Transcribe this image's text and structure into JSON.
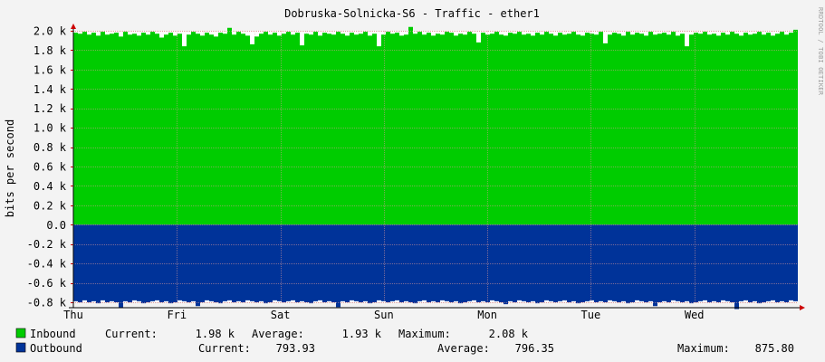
{
  "watermark": "RRDTOOL / TOBI OETIKER",
  "colors": {
    "inbound": "#00cc00",
    "outbound": "#003399",
    "background": "#f3f3f3",
    "canvas": "#ffffff",
    "grid_minor": "#eadada",
    "grid_major": "#dd9999",
    "axis_arrow": "#cc0000"
  },
  "chart_data": {
    "type": "area",
    "title": "Dobruska-Solnicka-S6 - Traffic - ether1",
    "ylabel": "bits per second",
    "xlabel": "",
    "ylim": [
      -0.8,
      2.0
    ],
    "yunit": "k",
    "y_ticks": [
      2.0,
      1.8,
      1.6,
      1.4,
      1.2,
      1.0,
      0.8,
      0.6,
      0.4,
      0.2,
      0.0,
      -0.2,
      -0.4,
      -0.6,
      -0.8
    ],
    "y_tick_labels": [
      "2.0 k",
      "1.8 k",
      "1.6 k",
      "1.4 k",
      "1.2 k",
      "1.0 k",
      "0.8 k",
      "0.6 k",
      "0.4 k",
      "0.2 k",
      "0.0",
      "-0.2 k",
      "-0.4 k",
      "-0.6 k",
      "-0.8 k"
    ],
    "x_tick_labels": [
      "Thu",
      "Fri",
      "Sat",
      "Sun",
      "Mon",
      "Tue",
      "Wed"
    ],
    "x_range_days": [
      0,
      7
    ],
    "grid": true,
    "legend_position": "bottom-left",
    "series": [
      {
        "name": "Inbound",
        "color": "#00cc00",
        "direction": "up",
        "current": "1.98 k",
        "average": "1.93 k",
        "maximum": "2.08 k",
        "values": [
          1.98,
          1.97,
          1.99,
          1.96,
          1.98,
          1.95,
          1.99,
          1.96,
          1.97,
          1.98,
          1.94,
          1.99,
          1.96,
          1.97,
          1.95,
          1.98,
          1.96,
          1.99,
          1.97,
          1.93,
          1.96,
          1.98,
          1.95,
          1.97,
          1.84,
          1.96,
          1.99,
          1.97,
          1.95,
          1.98,
          1.96,
          1.94,
          1.98,
          1.97,
          2.03,
          1.96,
          1.99,
          1.97,
          1.95,
          1.86,
          1.94,
          1.97,
          1.99,
          1.96,
          1.98,
          1.95,
          1.97,
          1.99,
          1.96,
          1.98,
          1.85,
          1.97,
          1.96,
          1.99,
          1.95,
          1.98,
          1.97,
          1.96,
          1.99,
          1.97,
          1.95,
          1.98,
          1.96,
          1.97,
          1.99,
          1.95,
          1.97,
          1.84,
          1.96,
          1.99,
          1.97,
          1.98,
          1.95,
          1.96,
          2.04,
          1.97,
          1.99,
          1.96,
          1.98,
          1.95,
          1.97,
          1.96,
          1.99,
          1.98,
          1.95,
          1.97,
          1.96,
          1.99,
          1.97,
          1.88,
          1.98,
          1.96,
          1.97,
          1.99,
          1.96,
          1.95,
          1.98,
          1.97,
          1.99,
          1.96,
          1.97,
          1.95,
          1.98,
          1.96,
          1.99,
          1.97,
          1.95,
          1.98,
          1.96,
          1.97,
          1.99,
          1.96,
          1.95,
          1.98,
          1.97,
          1.96,
          1.99,
          1.87,
          1.96,
          1.98,
          1.97,
          1.95,
          1.99,
          1.96,
          1.98,
          1.97,
          1.95,
          1.99,
          1.96,
          1.97,
          1.98,
          1.96,
          1.99,
          1.95,
          1.97,
          1.84,
          1.96,
          1.98,
          1.97,
          1.99,
          1.96,
          1.97,
          1.95,
          1.98,
          1.96,
          1.99,
          1.97,
          1.95,
          1.98,
          1.96,
          1.97,
          1.99,
          1.96,
          1.98,
          1.95,
          1.97,
          1.99,
          1.96,
          1.98,
          2.01
        ]
      },
      {
        "name": "Outbound",
        "color": "#003399",
        "direction": "down",
        "current": "793.93",
        "average": "796.35",
        "maximum": "875.80",
        "values": [
          0.79,
          0.8,
          0.78,
          0.8,
          0.79,
          0.81,
          0.78,
          0.8,
          0.79,
          0.8,
          0.86,
          0.79,
          0.8,
          0.78,
          0.79,
          0.81,
          0.8,
          0.79,
          0.78,
          0.8,
          0.79,
          0.81,
          0.8,
          0.78,
          0.79,
          0.8,
          0.79,
          0.84,
          0.8,
          0.78,
          0.79,
          0.8,
          0.81,
          0.79,
          0.78,
          0.8,
          0.79,
          0.8,
          0.78,
          0.79,
          0.8,
          0.79,
          0.81,
          0.8,
          0.78,
          0.79,
          0.8,
          0.79,
          0.78,
          0.8,
          0.79,
          0.8,
          0.81,
          0.79,
          0.78,
          0.8,
          0.79,
          0.8,
          0.85,
          0.79,
          0.8,
          0.78,
          0.79,
          0.8,
          0.79,
          0.81,
          0.8,
          0.78,
          0.79,
          0.8,
          0.79,
          0.78,
          0.8,
          0.79,
          0.8,
          0.81,
          0.79,
          0.78,
          0.8,
          0.79,
          0.8,
          0.78,
          0.79,
          0.8,
          0.79,
          0.81,
          0.8,
          0.79,
          0.78,
          0.8,
          0.79,
          0.8,
          0.78,
          0.79,
          0.8,
          0.82,
          0.79,
          0.8,
          0.78,
          0.79,
          0.8,
          0.79,
          0.81,
          0.8,
          0.78,
          0.79,
          0.8,
          0.79,
          0.78,
          0.8,
          0.79,
          0.81,
          0.8,
          0.79,
          0.78,
          0.8,
          0.79,
          0.8,
          0.78,
          0.79,
          0.8,
          0.79,
          0.81,
          0.8,
          0.78,
          0.79,
          0.8,
          0.79,
          0.84,
          0.8,
          0.79,
          0.8,
          0.78,
          0.79,
          0.8,
          0.79,
          0.81,
          0.8,
          0.79,
          0.78,
          0.8,
          0.79,
          0.8,
          0.78,
          0.79,
          0.8,
          0.87,
          0.79,
          0.78,
          0.8,
          0.79,
          0.81,
          0.8,
          0.79,
          0.78,
          0.8,
          0.79,
          0.8,
          0.78,
          0.79
        ]
      }
    ]
  },
  "legend": {
    "inbound": {
      "label": "Inbound",
      "current_label": "Current:",
      "current": "1.98 k",
      "average_label": "Average:",
      "average": "1.93 k",
      "maximum_label": "Maximum:",
      "maximum": "2.08 k"
    },
    "outbound": {
      "label": "Outbound",
      "current_label": "Current:",
      "current": "793.93",
      "average_label": "Average:",
      "average": "796.35",
      "maximum_label": "Maximum:",
      "maximum": "875.80"
    }
  }
}
